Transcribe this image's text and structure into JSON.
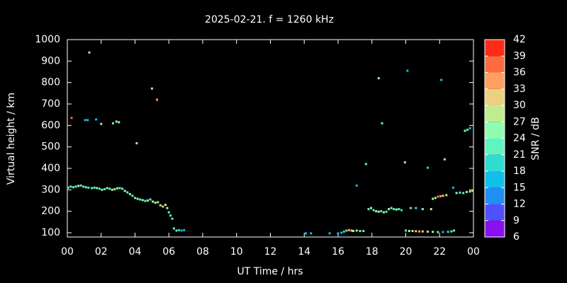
{
  "chart_data": {
    "type": "scatter",
    "title": "2025-02-21. f = 1260 kHz",
    "x_label": "UT Time / hrs",
    "y_label": "Virtual height / km",
    "xlim": [
      0,
      24
    ],
    "xticks": [
      {
        "value": 0,
        "label": "00"
      },
      {
        "value": 2,
        "label": "02"
      },
      {
        "value": 4,
        "label": "04"
      },
      {
        "value": 6,
        "label": "06"
      },
      {
        "value": 8,
        "label": "08"
      },
      10,
      12,
      14,
      16,
      18,
      20,
      22,
      {
        "value": 24,
        "label": "00"
      }
    ],
    "ylim": [
      80,
      1000
    ],
    "yticks": [
      100,
      200,
      300,
      400,
      500,
      600,
      700,
      800,
      900,
      1000
    ],
    "colorbar": {
      "label": "SNR / dB",
      "lim": [
        6,
        42
      ],
      "ticks": [
        6,
        9,
        12,
        15,
        18,
        21,
        24,
        27,
        30,
        33,
        36,
        39,
        42
      ],
      "colors": [
        "#8a10f0",
        "#5050ff",
        "#2090f0",
        "#10c0e8",
        "#30dcd0",
        "#60f4c0",
        "#90fcb0",
        "#c0ec90",
        "#ecd080",
        "#ffa060",
        "#ff6a40",
        "#ff2a18"
      ]
    },
    "x": [
      0.05,
      0.2,
      0.35,
      0.5,
      0.65,
      0.8,
      0.95,
      1.1,
      1.25,
      1.45,
      1.6,
      1.75,
      1.9,
      2.05,
      2.2,
      2.35,
      2.5,
      2.65,
      2.8,
      2.95,
      3.1,
      3.25,
      3.4,
      3.55,
      3.7,
      3.85,
      4.0,
      4.15,
      4.3,
      4.45,
      4.6,
      4.75,
      4.9,
      5.05,
      5.2,
      5.35,
      5.5,
      5.65,
      5.8,
      5.9,
      6.0,
      6.1,
      6.2,
      6.3,
      6.45,
      6.6,
      6.75,
      6.9,
      0.25,
      1.05,
      1.2,
      1.3,
      1.7,
      2.0,
      2.7,
      2.9,
      3.05,
      4.1,
      5.0,
      5.3,
      14.1,
      14.4,
      15.5,
      16.0,
      16.2,
      16.35,
      16.5,
      16.65,
      16.8,
      16.9,
      17.1,
      17.3,
      17.5,
      17.1,
      17.65,
      18.4,
      18.6,
      19.95,
      20.1,
      21.3,
      22.1,
      22.3,
      22.8,
      23.5,
      23.65,
      23.8,
      17.8,
      17.95,
      18.1,
      18.25,
      18.4,
      18.55,
      18.7,
      18.85,
      19.0,
      19.15,
      19.3,
      19.45,
      19.6,
      19.75,
      20.3,
      20.6,
      21.0,
      21.5,
      21.6,
      21.75,
      21.9,
      22.05,
      22.2,
      22.4,
      23.0,
      23.2,
      23.4,
      23.6,
      23.8,
      23.95,
      20.0,
      20.2,
      20.4,
      20.6,
      20.8,
      21.0,
      21.3,
      21.6,
      21.9,
      22.2,
      22.5,
      22.7,
      22.85
    ],
    "y": [
      310,
      315,
      312,
      315,
      318,
      320,
      315,
      312,
      310,
      308,
      310,
      308,
      305,
      300,
      303,
      308,
      305,
      300,
      303,
      307,
      308,
      305,
      295,
      288,
      280,
      272,
      262,
      258,
      255,
      252,
      248,
      250,
      255,
      245,
      240,
      242,
      228,
      222,
      230,
      215,
      195,
      180,
      165,
      120,
      110,
      112,
      110,
      112,
      635,
      625,
      625,
      940,
      628,
      607,
      610,
      618,
      615,
      517,
      772,
      720,
      97,
      97,
      97,
      97,
      100,
      105,
      110,
      112,
      110,
      108,
      110,
      108,
      108,
      320,
      420,
      820,
      610,
      428,
      855,
      403,
      812,
      442,
      310,
      575,
      580,
      587,
      210,
      215,
      205,
      200,
      198,
      200,
      195,
      198,
      210,
      215,
      210,
      208,
      210,
      205,
      215,
      215,
      210,
      210,
      258,
      262,
      268,
      270,
      272,
      275,
      285,
      287,
      285,
      290,
      292,
      295,
      110,
      108,
      108,
      107,
      106,
      106,
      105,
      104,
      103,
      103,
      104,
      106,
      110
    ],
    "snr": [
      21,
      22,
      21,
      22,
      24,
      22,
      21,
      21,
      22,
      21,
      22,
      24,
      21,
      24,
      22,
      24,
      22,
      27,
      24,
      24,
      22,
      22,
      24,
      22,
      24,
      22,
      21,
      24,
      22,
      24,
      22,
      24,
      22,
      27,
      24,
      27,
      30,
      27,
      30,
      24,
      22,
      21,
      22,
      21,
      22,
      18,
      15,
      15,
      36,
      15,
      15,
      24,
      15,
      24,
      22,
      27,
      24,
      30,
      24,
      33,
      15,
      15,
      15,
      15,
      15,
      18,
      21,
      33,
      30,
      27,
      24,
      22,
      21,
      15,
      21,
      24,
      22,
      24,
      15,
      18,
      15,
      24,
      15,
      24,
      22,
      15,
      21,
      24,
      22,
      24,
      27,
      22,
      24,
      22,
      24,
      21,
      22,
      24,
      21,
      18,
      21,
      18,
      24,
      27,
      24,
      27,
      36,
      33,
      30,
      27,
      24,
      22,
      21,
      24,
      27,
      30,
      21,
      24,
      27,
      30,
      33,
      30,
      27,
      24,
      22,
      15,
      18,
      21,
      22
    ]
  }
}
